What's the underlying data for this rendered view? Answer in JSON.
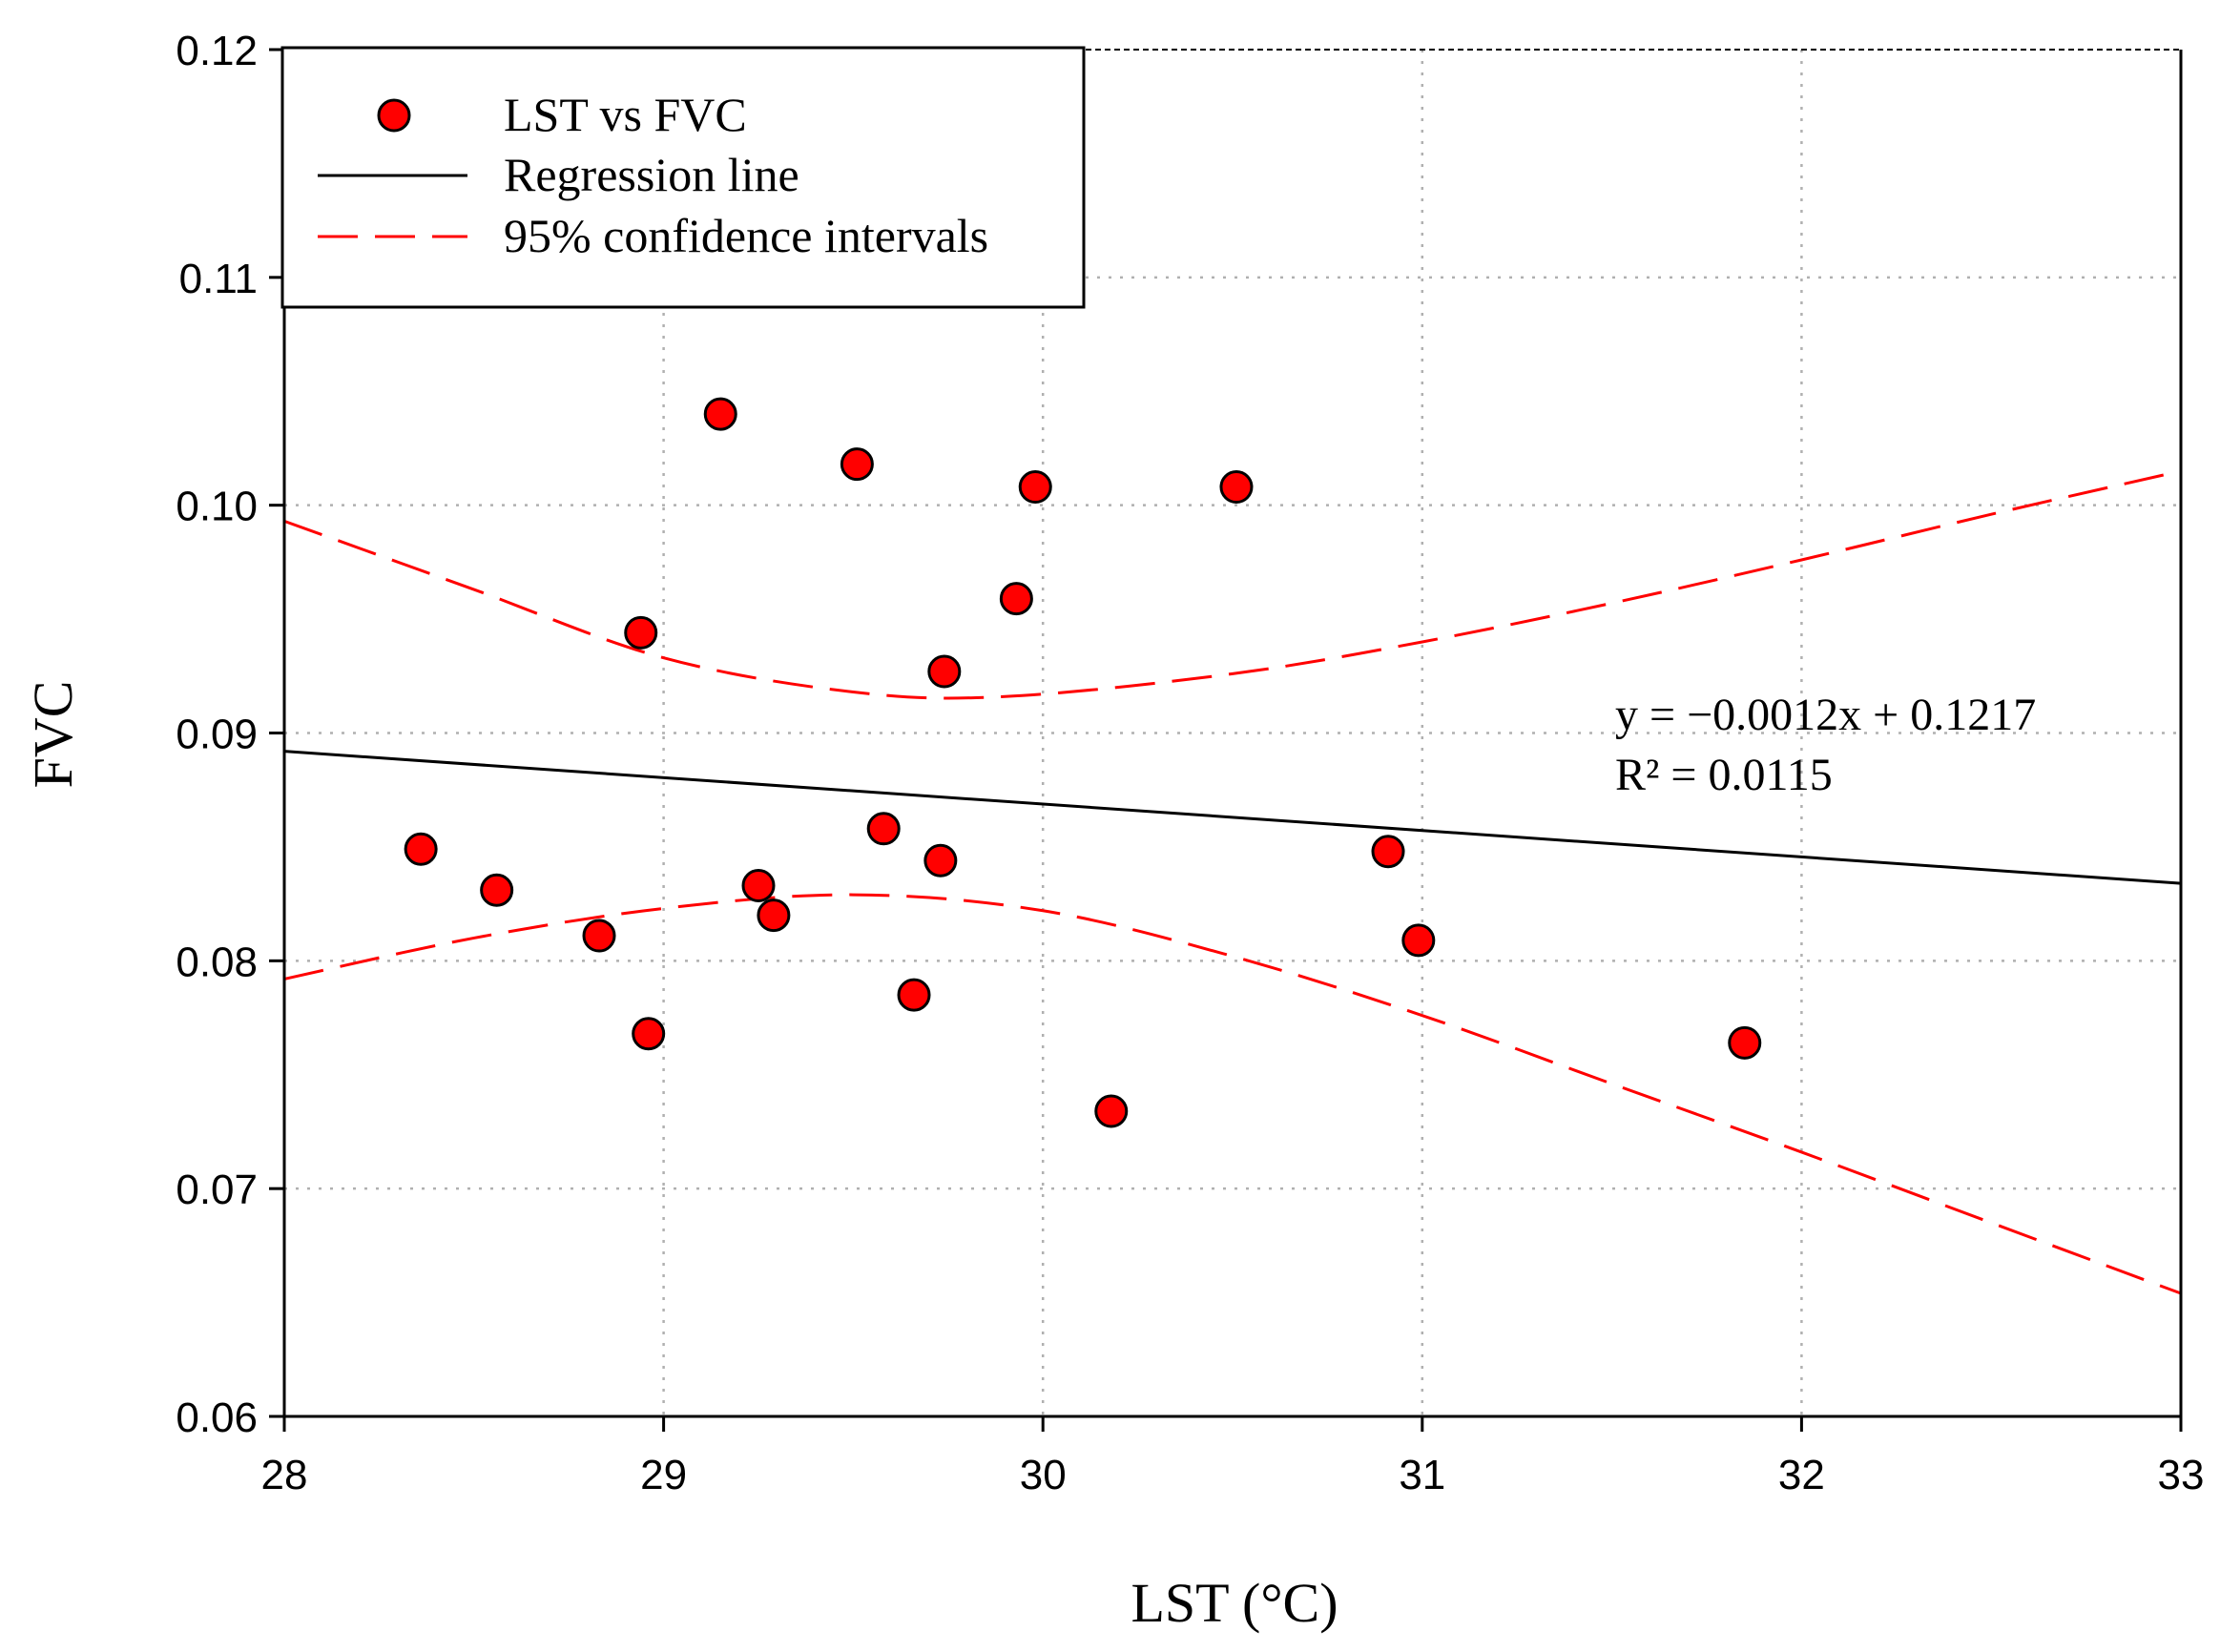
{
  "chart_data": {
    "type": "scatter",
    "xlabel": "LST (°C)",
    "ylabel": "FVC",
    "xlim": [
      28,
      33
    ],
    "ylim": [
      0.06,
      0.12
    ],
    "x_ticks": [
      "28",
      "29",
      "30",
      "31",
      "32",
      "33"
    ],
    "y_ticks": [
      "0.06",
      "0.07",
      "0.08",
      "0.09",
      "0.10",
      "0.11",
      "0.12"
    ],
    "grid": true,
    "legend_position": "top-left",
    "legend": {
      "points": "LST vs FVC",
      "regression": "Regression line",
      "ci": "95% confidence intervals"
    },
    "equation": "y = −0.0012x + 0.1217",
    "r_squared": "R² = 0.0115",
    "series": [
      {
        "name": "LST vs FVC",
        "points": [
          {
            "x": 28.36,
            "y": 0.0849
          },
          {
            "x": 28.56,
            "y": 0.0831
          },
          {
            "x": 28.83,
            "y": 0.0811
          },
          {
            "x": 28.94,
            "y": 0.0944
          },
          {
            "x": 28.96,
            "y": 0.0768
          },
          {
            "x": 29.15,
            "y": 0.104
          },
          {
            "x": 29.25,
            "y": 0.0833
          },
          {
            "x": 29.29,
            "y": 0.082
          },
          {
            "x": 29.51,
            "y": 0.1018
          },
          {
            "x": 29.58,
            "y": 0.0858
          },
          {
            "x": 29.66,
            "y": 0.0785
          },
          {
            "x": 29.73,
            "y": 0.0844
          },
          {
            "x": 29.74,
            "y": 0.0927
          },
          {
            "x": 29.93,
            "y": 0.0959
          },
          {
            "x": 29.98,
            "y": 0.1008
          },
          {
            "x": 30.18,
            "y": 0.0734
          },
          {
            "x": 30.51,
            "y": 0.1008
          },
          {
            "x": 30.91,
            "y": 0.0848
          },
          {
            "x": 30.99,
            "y": 0.0809
          },
          {
            "x": 31.85,
            "y": 0.0764
          }
        ]
      },
      {
        "name": "Regression line",
        "x": [
          28,
          33
        ],
        "y": [
          0.0892,
          0.0834
        ]
      },
      {
        "name": "95% confidence intervals",
        "upper": {
          "x": [
            28.0,
            28.5,
            29.0,
            29.5,
            29.9,
            30.5,
            31.0,
            31.5,
            32.0,
            32.5,
            33.0
          ],
          "y": [
            0.0993,
            0.0963,
            0.0933,
            0.0918,
            0.0916,
            0.0926,
            0.094,
            0.0957,
            0.0976,
            0.0996,
            0.1015
          ]
        },
        "lower": {
          "x": [
            28.0,
            28.5,
            29.0,
            29.5,
            30.0,
            30.5,
            31.0,
            31.5,
            32.0,
            32.5,
            33.0
          ],
          "y": [
            0.0792,
            0.081,
            0.0823,
            0.0829,
            0.0822,
            0.0802,
            0.0776,
            0.0746,
            0.0716,
            0.0685,
            0.0654
          ]
        }
      }
    ]
  },
  "colors": {
    "points_fill": "#ff0000",
    "points_stroke": "#000000",
    "regression": "#000000",
    "ci": "#ff0000",
    "grid": "#b0b0b0"
  }
}
